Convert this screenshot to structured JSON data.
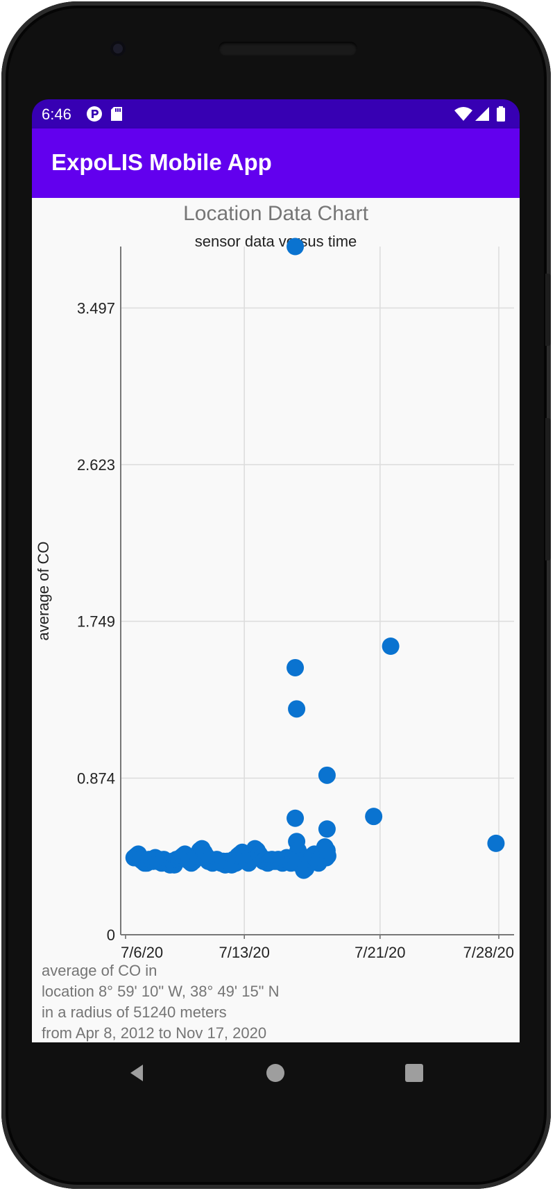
{
  "status_bar": {
    "time": "6:46",
    "icons": [
      "p-badge-icon",
      "sd-card-icon",
      "wifi-icon",
      "cell-signal-icon",
      "battery-icon"
    ]
  },
  "app_bar": {
    "title": "ExpoLIS Mobile App"
  },
  "chart": {
    "title": "Location Data Chart",
    "subtitle": "sensor data versus time"
  },
  "chart_data": {
    "type": "scatter",
    "title": "Location Data Chart",
    "subtitle": "sensor data versus time",
    "xlabel": "",
    "ylabel": "average of CO",
    "x_ticks": [
      {
        "date": "2020-07-06",
        "label": "7/6/20"
      },
      {
        "date": "2020-07-13",
        "label": "7/13/20"
      },
      {
        "date": "2020-07-21",
        "label": "7/21/20"
      },
      {
        "date": "2020-07-28",
        "label": "7/28/20"
      }
    ],
    "y_ticks": [
      "0",
      "0.874",
      "1.749",
      "2.623",
      "3.497"
    ],
    "xlim": [
      "2020-07-06",
      "2020-07-28"
    ],
    "ylim": [
      0,
      3.84
    ],
    "grid": true,
    "color": "#0a73d0",
    "points": [
      [
        "2020-07-06T12:00",
        0.43
      ],
      [
        "2020-07-06T15:00",
        0.44
      ],
      [
        "2020-07-06T18:00",
        0.45
      ],
      [
        "2020-07-06T21:00",
        0.42
      ],
      [
        "2020-07-07T00:00",
        0.41
      ],
      [
        "2020-07-07T03:00",
        0.4
      ],
      [
        "2020-07-07T06:00",
        0.4
      ],
      [
        "2020-07-07T09:00",
        0.42
      ],
      [
        "2020-07-07T12:00",
        0.42
      ],
      [
        "2020-07-07T15:00",
        0.41
      ],
      [
        "2020-07-07T18:00",
        0.43
      ],
      [
        "2020-07-07T21:00",
        0.41
      ],
      [
        "2020-07-08T00:00",
        0.42
      ],
      [
        "2020-07-08T03:00",
        0.4
      ],
      [
        "2020-07-08T06:00",
        0.42
      ],
      [
        "2020-07-08T09:00",
        0.41
      ],
      [
        "2020-07-08T12:00",
        0.4
      ],
      [
        "2020-07-08T15:00",
        0.39
      ],
      [
        "2020-07-08T18:00",
        0.41
      ],
      [
        "2020-07-08T21:00",
        0.39
      ],
      [
        "2020-07-09T00:00",
        0.42
      ],
      [
        "2020-07-09T03:00",
        0.42
      ],
      [
        "2020-07-09T06:00",
        0.43
      ],
      [
        "2020-07-09T09:00",
        0.44
      ],
      [
        "2020-07-09T12:00",
        0.45
      ],
      [
        "2020-07-09T15:00",
        0.42
      ],
      [
        "2020-07-09T18:00",
        0.41
      ],
      [
        "2020-07-09T21:00",
        0.4
      ],
      [
        "2020-07-10T00:00",
        0.41
      ],
      [
        "2020-07-10T03:00",
        0.43
      ],
      [
        "2020-07-10T06:00",
        0.44
      ],
      [
        "2020-07-10T09:00",
        0.47
      ],
      [
        "2020-07-10T12:00",
        0.48
      ],
      [
        "2020-07-10T15:00",
        0.46
      ],
      [
        "2020-07-10T18:00",
        0.44
      ],
      [
        "2020-07-10T21:00",
        0.41
      ],
      [
        "2020-07-11T00:00",
        0.42
      ],
      [
        "2020-07-11T03:00",
        0.4
      ],
      [
        "2020-07-11T06:00",
        0.41
      ],
      [
        "2020-07-11T09:00",
        0.42
      ],
      [
        "2020-07-11T12:00",
        0.41
      ],
      [
        "2020-07-11T15:00",
        0.4
      ],
      [
        "2020-07-11T18:00",
        0.41
      ],
      [
        "2020-07-11T21:00",
        0.39
      ],
      [
        "2020-07-12T00:00",
        0.41
      ],
      [
        "2020-07-12T03:00",
        0.4
      ],
      [
        "2020-07-12T06:00",
        0.39
      ],
      [
        "2020-07-12T09:00",
        0.42
      ],
      [
        "2020-07-12T12:00",
        0.4
      ],
      [
        "2020-07-12T15:00",
        0.44
      ],
      [
        "2020-07-12T18:00",
        0.45
      ],
      [
        "2020-07-12T21:00",
        0.46
      ],
      [
        "2020-07-13T00:00",
        0.43
      ],
      [
        "2020-07-13T03:00",
        0.41
      ],
      [
        "2020-07-13T06:00",
        0.4
      ],
      [
        "2020-07-13T09:00",
        0.44
      ],
      [
        "2020-07-13T12:00",
        0.46
      ],
      [
        "2020-07-13T15:00",
        0.48
      ],
      [
        "2020-07-13T18:00",
        0.47
      ],
      [
        "2020-07-13T21:00",
        0.45
      ],
      [
        "2020-07-14T00:00",
        0.43
      ],
      [
        "2020-07-14T03:00",
        0.41
      ],
      [
        "2020-07-14T06:00",
        0.42
      ],
      [
        "2020-07-14T09:00",
        0.4
      ],
      [
        "2020-07-14T12:00",
        0.41
      ],
      [
        "2020-07-14T15:00",
        0.42
      ],
      [
        "2020-07-14T18:00",
        0.41
      ],
      [
        "2020-07-14T21:00",
        0.41
      ],
      [
        "2020-07-15T00:00",
        0.42
      ],
      [
        "2020-07-15T03:00",
        0.41
      ],
      [
        "2020-07-15T06:00",
        0.4
      ],
      [
        "2020-07-15T09:00",
        0.42
      ],
      [
        "2020-07-15T12:00",
        0.43
      ],
      [
        "2020-07-15T15:00",
        0.41
      ],
      [
        "2020-07-15T18:00",
        0.4
      ],
      [
        "2020-07-15T21:00",
        0.42
      ],
      [
        "2020-07-16T00:00",
        3.84
      ],
      [
        "2020-07-16T00:00",
        1.49
      ],
      [
        "2020-07-16T02:00",
        1.26
      ],
      [
        "2020-07-16T00:00",
        0.65
      ],
      [
        "2020-07-16T02:00",
        0.52
      ],
      [
        "2020-07-16T04:00",
        0.47
      ],
      [
        "2020-07-16T01:00",
        0.42
      ],
      [
        "2020-07-16T03:00",
        0.4
      ],
      [
        "2020-07-16T06:00",
        0.41
      ],
      [
        "2020-07-16T09:00",
        0.39
      ],
      [
        "2020-07-16T12:00",
        0.36
      ],
      [
        "2020-07-16T15:00",
        0.37
      ],
      [
        "2020-07-16T18:00",
        0.43
      ],
      [
        "2020-07-16T21:00",
        0.42
      ],
      [
        "2020-07-17T00:00",
        0.44
      ],
      [
        "2020-07-17T03:00",
        0.45
      ],
      [
        "2020-07-17T06:00",
        0.41
      ],
      [
        "2020-07-17T09:00",
        0.4
      ],
      [
        "2020-07-17T12:00",
        0.43
      ],
      [
        "2020-07-17T15:00",
        0.45
      ],
      [
        "2020-07-17T18:00",
        0.49
      ],
      [
        "2020-07-17T20:00",
        0.43
      ],
      [
        "2020-07-17T22:00",
        0.44
      ],
      [
        "2020-07-17T21:00",
        0.47
      ],
      [
        "2020-07-17T21:00",
        0.59
      ],
      [
        "2020-07-17T21:00",
        0.89
      ],
      [
        "2020-07-20T15:00",
        0.66
      ],
      [
        "2020-07-21T15:00",
        1.61
      ],
      [
        "2020-07-27T20:00",
        0.51
      ]
    ]
  },
  "footer": {
    "lines": [
      "average of CO in",
      "location 8° 59' 10\" W, 38° 49' 15\" N",
      "in a radius of 51240 meters",
      "from Apr 8, 2012 to Nov 17, 2020"
    ]
  },
  "nav_bar": {
    "icons": [
      "back-icon",
      "home-icon",
      "recents-icon"
    ]
  }
}
